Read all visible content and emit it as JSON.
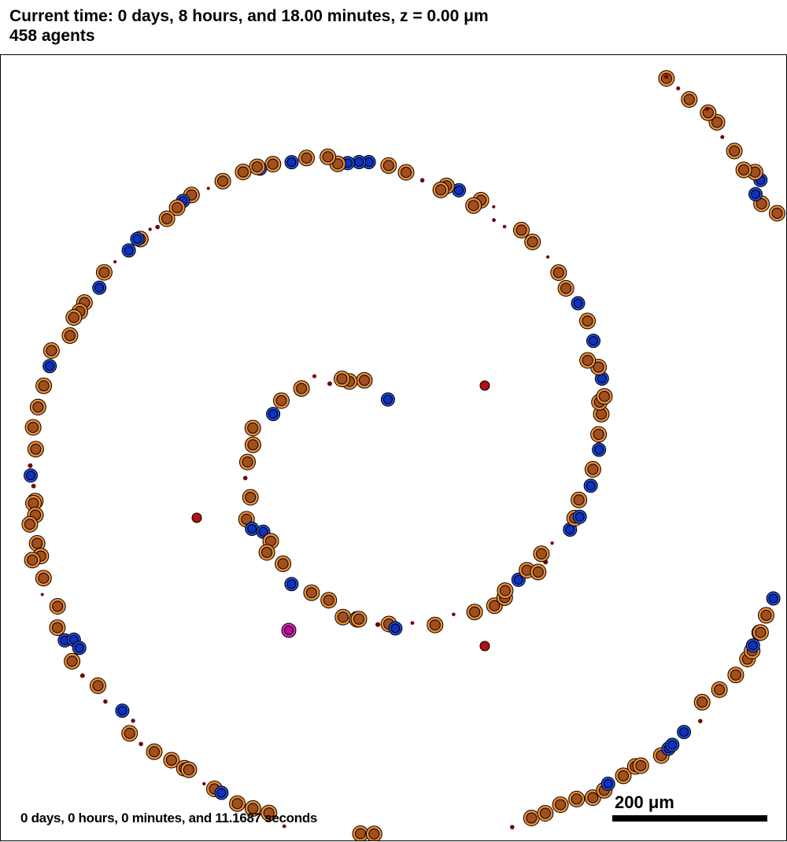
{
  "header": {
    "time_line": "Current time: 0 days, 8 hours, and 18.00 minutes, z = 0.00 μm",
    "agents_line": "458 agents"
  },
  "footer": {
    "elapsed": "0 days, 0 hours, 0 minutes, and 11.1687 seconds"
  },
  "scale_bar": {
    "label": "200 μm",
    "length_um": 200
  },
  "colors": {
    "orange_fill": "#f08c32",
    "orange_core": "#a0501e",
    "blue_fill": "#2050e0",
    "blue_core": "#1030c0",
    "dark_red": "#6e0a0a",
    "red_fill": "#b01010",
    "magenta": "#e020d0",
    "background": "#ffffff"
  }
}
